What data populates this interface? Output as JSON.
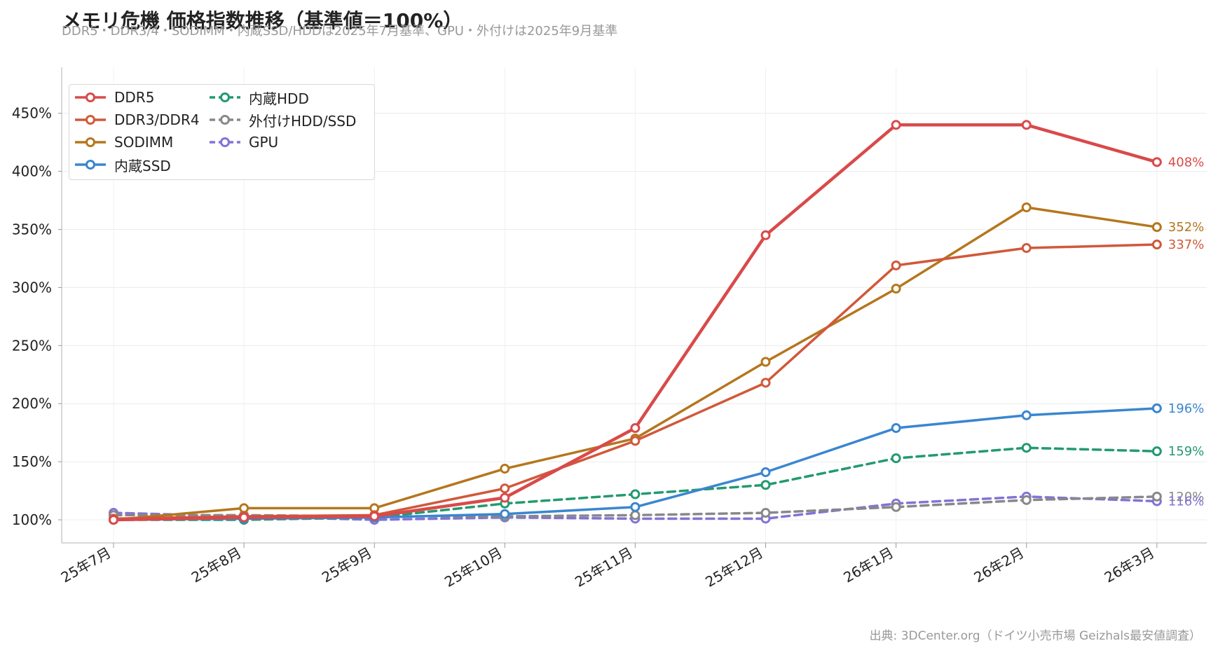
{
  "title": "メモリ危機 価格指数推移（基準値＝100%）",
  "subtitle": "DDR5・DDR3/4・SODIMM・内蔵SSD/HDDは2025年7月基準、GPU・外付けは2025年9月基準",
  "source": "出典: 3DCenter.org（ドイツ小売市場 Geizhals最安値調査）",
  "chart_data": {
    "type": "line",
    "categories": [
      "25年7月",
      "25年8月",
      "25年9月",
      "25年10月",
      "25年11月",
      "25年12月",
      "26年1月",
      "26年2月",
      "26年3月"
    ],
    "ylim": [
      80,
      490
    ],
    "yticks": [
      100,
      150,
      200,
      250,
      300,
      350,
      400,
      450
    ],
    "ytick_labels": [
      "100%",
      "150%",
      "200%",
      "250%",
      "300%",
      "350%",
      "400%",
      "450%"
    ],
    "grid": true,
    "legend": "top-left",
    "series": [
      {
        "name": "DDR5",
        "color": "#d94a4a",
        "dashed": false,
        "width": 4.5,
        "end_label": "408%",
        "values": [
          100,
          102,
          103,
          119,
          179,
          345,
          440,
          440,
          408
        ]
      },
      {
        "name": "DDR3/DDR4",
        "color": "#d0593a",
        "dashed": false,
        "width": 3.5,
        "end_label": "337%",
        "values": [
          101,
          103,
          104,
          127,
          168,
          218,
          319,
          334,
          337
        ]
      },
      {
        "name": "SODIMM",
        "color": "#b5761d",
        "dashed": false,
        "width": 3.5,
        "end_label": "352%",
        "values": [
          100,
          110,
          110,
          144,
          170,
          236,
          299,
          369,
          352
        ]
      },
      {
        "name": "内蔵SSD",
        "color": "#3a86d0",
        "dashed": false,
        "width": 3.5,
        "end_label": "196%",
        "values": [
          100,
          101,
          102,
          105,
          111,
          141,
          179,
          190,
          196
        ]
      },
      {
        "name": "内蔵HDD",
        "color": "#239a6e",
        "dashed": true,
        "width": 3.5,
        "end_label": "159%",
        "values": [
          100,
          100,
          102,
          114,
          122,
          130,
          153,
          162,
          159
        ]
      },
      {
        "name": "外付けHDD/SSD",
        "color": "#888888",
        "dashed": true,
        "width": 3.5,
        "end_label": "120%",
        "values": [
          104,
          104,
          103,
          103,
          104,
          106,
          111,
          117,
          120
        ]
      },
      {
        "name": "GPU",
        "color": "#8273d6",
        "dashed": true,
        "width": 3.5,
        "end_label": "116%",
        "values": [
          106,
          103,
          100,
          102,
          101,
          101,
          114,
          120,
          116
        ]
      }
    ]
  }
}
